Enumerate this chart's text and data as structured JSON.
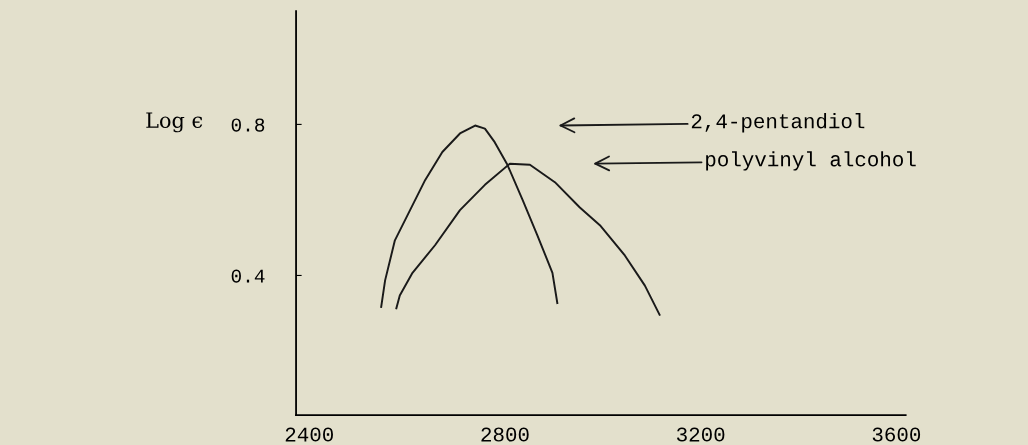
{
  "chart_data": {
    "type": "line",
    "ylabel": "Log ϵ",
    "xlim": [
      2373,
      3619
    ],
    "ylim": [
      0.03,
      1.1
    ],
    "xticks": [
      2400,
      2800,
      3200,
      3600
    ],
    "yticks": [
      0.4,
      0.8
    ],
    "grid": false,
    "legend": false,
    "marker": "none",
    "line_style": "solid",
    "series": [
      {
        "color": "#1a1a1a",
        "x": [
          2547,
          2555,
          2575,
          2606,
          2637,
          2672,
          2708,
          2739,
          2759,
          2779,
          2805,
          2836,
          2866,
          2897,
          2907
        ],
        "values": [
          0.317,
          0.387,
          0.493,
          0.573,
          0.653,
          0.727,
          0.776,
          0.797,
          0.789,
          0.753,
          0.693,
          0.6,
          0.507,
          0.407,
          0.327
        ]
      },
      {
        "color": "#1a1a1a",
        "x": [
          2578,
          2585,
          2611,
          2657,
          2708,
          2759,
          2810,
          2851,
          2902,
          2953,
          2994,
          3045,
          3086,
          3116
        ],
        "values": [
          0.313,
          0.347,
          0.407,
          0.48,
          0.573,
          0.64,
          0.696,
          0.693,
          0.647,
          0.58,
          0.533,
          0.453,
          0.373,
          0.296
        ]
      }
    ],
    "annotations": [
      "2,4-pentandiol",
      "polyvinyl alcohol"
    ]
  }
}
